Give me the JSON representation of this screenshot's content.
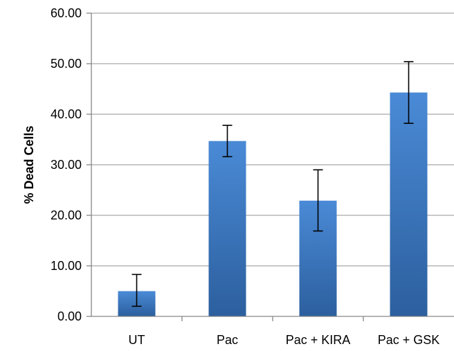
{
  "chart_data": {
    "type": "bar",
    "title": "",
    "xlabel": "",
    "ylabel": "% Dead Cells",
    "ylim": [
      0,
      60
    ],
    "y_ticks": [
      "0.00",
      "10.00",
      "20.00",
      "30.00",
      "40.00",
      "50.00",
      "60.00"
    ],
    "grid": true,
    "legend": "none",
    "categories": [
      "UT",
      "Pac",
      "Pac + KIRA",
      "Pac + GSK"
    ],
    "series": [
      {
        "values": [
          5.0,
          34.7,
          22.9,
          44.3
        ],
        "error_low": [
          2.0,
          31.6,
          16.9,
          38.2
        ],
        "error_high": [
          8.3,
          37.8,
          29.0,
          50.4
        ]
      }
    ],
    "colors": {
      "bar_top": "#4a8ad6",
      "bar_bottom": "#2c5f9e",
      "grid": "#a6a6a6",
      "axis": "#868686",
      "error_bar": "#000000"
    }
  }
}
